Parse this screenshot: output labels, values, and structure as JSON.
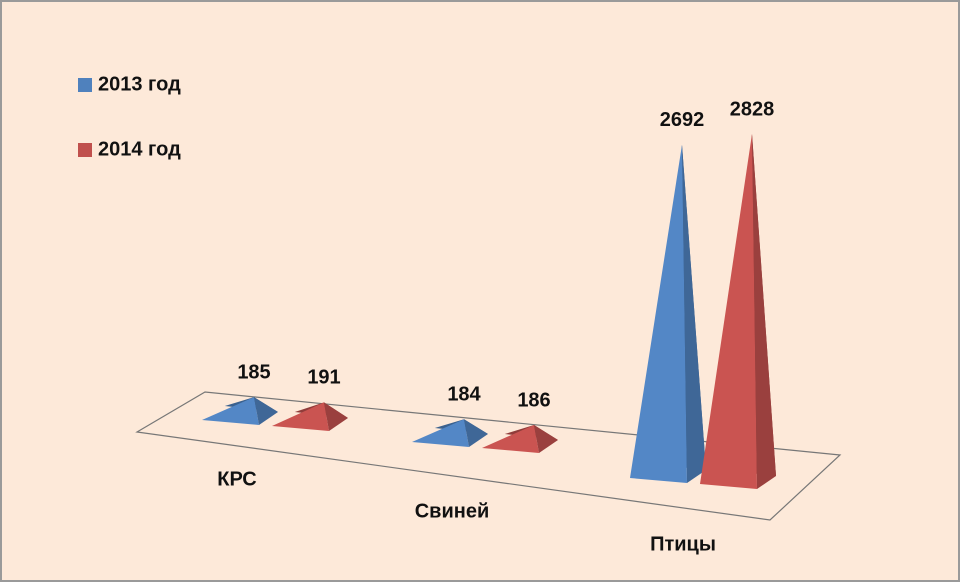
{
  "chart_data": {
    "type": "pyramid3d",
    "categories": [
      "КРС",
      "Свиней",
      "Птицы"
    ],
    "series": [
      {
        "name": "2013 год",
        "color": "#4f81bd",
        "values": [
          185,
          184,
          2692
        ]
      },
      {
        "name": "2014 год",
        "color": "#c0504d",
        "values": [
          191,
          186,
          2828
        ]
      }
    ],
    "legend": "top-left"
  }
}
